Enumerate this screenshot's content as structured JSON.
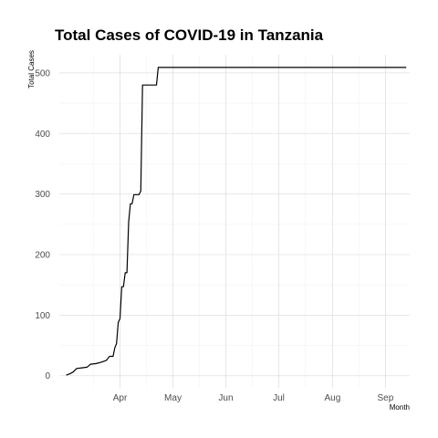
{
  "chart_data": {
    "type": "line",
    "title": "Total Cases of COVID-19 in Tanzania",
    "xlabel": "Month",
    "ylabel": "Total Cases",
    "x_ticks": [
      "Apr",
      "May",
      "Jun",
      "Jul",
      "Aug",
      "Sep"
    ],
    "y_ticks": [
      0,
      100,
      200,
      300,
      400,
      500
    ],
    "xlim": [
      "2020-03-12",
      "2020-09-30"
    ],
    "ylim": [
      -20,
      530
    ],
    "grid": true,
    "legend": "none",
    "series": [
      {
        "color": "#000000",
        "points": [
          [
            "2020-03-16",
            1
          ],
          [
            "2020-03-18",
            3
          ],
          [
            "2020-03-20",
            6
          ],
          [
            "2020-03-22",
            12
          ],
          [
            "2020-03-25",
            13
          ],
          [
            "2020-03-28",
            14
          ],
          [
            "2020-03-30",
            19
          ],
          [
            "2020-04-02",
            20
          ],
          [
            "2020-04-05",
            22
          ],
          [
            "2020-04-08",
            25
          ],
          [
            "2020-04-10",
            32
          ],
          [
            "2020-04-12",
            32
          ],
          [
            "2020-04-13",
            46
          ],
          [
            "2020-04-14",
            53
          ],
          [
            "2020-04-15",
            88
          ],
          [
            "2020-04-16",
            94
          ],
          [
            "2020-04-17",
            147
          ],
          [
            "2020-04-18",
            147
          ],
          [
            "2020-04-19",
            170
          ],
          [
            "2020-04-20",
            170
          ],
          [
            "2020-04-21",
            254
          ],
          [
            "2020-04-22",
            284
          ],
          [
            "2020-04-23",
            284
          ],
          [
            "2020-04-24",
            299
          ],
          [
            "2020-04-26",
            299
          ],
          [
            "2020-04-27",
            299
          ],
          [
            "2020-04-28",
            305
          ],
          [
            "2020-04-29",
            480
          ],
          [
            "2020-05-06",
            480
          ],
          [
            "2020-05-07",
            480
          ],
          [
            "2020-05-08",
            509
          ],
          [
            "2020-09-28",
            509
          ]
        ]
      }
    ]
  }
}
